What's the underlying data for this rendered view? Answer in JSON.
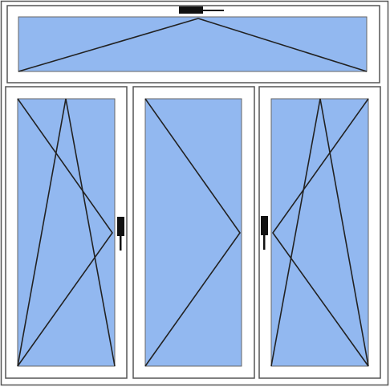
{
  "diagram": {
    "type": "window-configuration",
    "colors": {
      "frame_fill": "#ffffff",
      "frame_stroke": "#555555",
      "glass_fill": "#92b8f0",
      "glass_stroke": "#666666",
      "opening_line": "#222222",
      "handle": "#111111"
    },
    "panels": [
      {
        "id": "transom",
        "opening": "bottom-hung",
        "handle": "top"
      },
      {
        "id": "left-sash",
        "opening": "tilt-and-turn",
        "hinge": "left",
        "handle": "right"
      },
      {
        "id": "center-sash",
        "opening": "side-hung",
        "hinge": "left",
        "handle": "none"
      },
      {
        "id": "right-sash",
        "opening": "tilt-and-turn",
        "hinge": "right",
        "handle": "left"
      }
    ]
  }
}
